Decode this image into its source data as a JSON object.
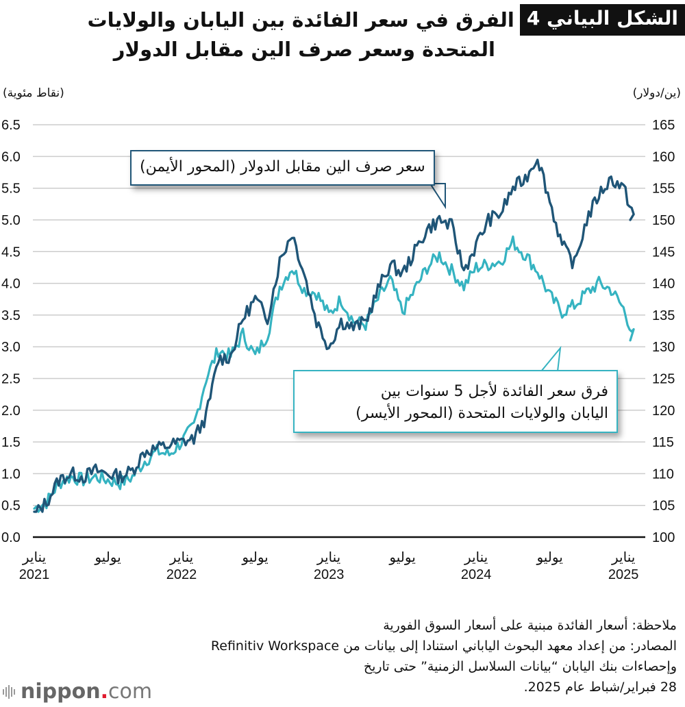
{
  "header": {
    "figure_label": "الشكل البياني 4",
    "title_line1": "الفرق في سعر الفائدة بين اليابان والولايات",
    "title_line2": "المتحدة وسعر صرف الين مقابل الدولار"
  },
  "axes": {
    "left_unit": "(نقاط مئوية)",
    "right_unit": "(ين/دولار)",
    "left_ticks": [
      "6.5",
      "6.0",
      "5.5",
      "5.0",
      "4.5",
      "4.0",
      "3.5",
      "3.0",
      "2.5",
      "2.0",
      "1.5",
      "1.0",
      "0.5",
      "0.0"
    ],
    "right_ticks": [
      "165",
      "160",
      "155",
      "150",
      "145",
      "140",
      "135",
      "130",
      "125",
      "120",
      "115",
      "110",
      "105",
      "100"
    ]
  },
  "x_labels": [
    {
      "month": "يناير",
      "year": "2021"
    },
    {
      "month": "يوليو",
      "year": ""
    },
    {
      "month": "يناير",
      "year": "2022"
    },
    {
      "month": "يوليو",
      "year": ""
    },
    {
      "month": "يناير",
      "year": "2023"
    },
    {
      "month": "يوليو",
      "year": ""
    },
    {
      "month": "يناير",
      "year": "2024"
    },
    {
      "month": "يوليو",
      "year": ""
    },
    {
      "month": "يناير",
      "year": "2025"
    }
  ],
  "callouts": {
    "yen": "سعر صرف الين مقابل الدولار (المحور الأيمن)",
    "spread_line1": "فرق سعر الفائدة لأجل 5 سنوات بين",
    "spread_line2": "اليابان والولايات المتحدة (المحور الأيسر)"
  },
  "notes": {
    "note": "ملاحظة: أسعار الفائدة مبنية على أسعار السوق الفورية",
    "source_line1": "المصادر: من إعداد معهد البحوث الياباني استنادا إلى بيانات من Refinitiv Workspace",
    "source_line2": "وإحصاءات بنك اليابان “بيانات السلاسل الزمنية” حتى تاريخ",
    "source_line3": "28 فبراير/شباط عام 2025."
  },
  "logo": {
    "brand": "nippon",
    "dot": ".",
    "tld": "com"
  },
  "colors": {
    "yen_line": "#1f5577",
    "spread_line": "#35b3c1",
    "grid": "#cccccc",
    "axis": "#111111"
  },
  "chart_data": {
    "type": "line",
    "title": "الفرق في سعر الفائدة بين اليابان والولايات المتحدة وسعر صرف الين مقابل الدولار",
    "xlabel": "",
    "ylabel_left": "(نقاط مئوية)",
    "ylabel_right": "(ين/دولار)",
    "ylim_left": [
      0,
      6.5
    ],
    "ylim_right": [
      100,
      165
    ],
    "grid": true,
    "x": [
      "2021-01",
      "2021-02",
      "2021-03",
      "2021-04",
      "2021-05",
      "2021-06",
      "2021-07",
      "2021-08",
      "2021-09",
      "2021-10",
      "2021-11",
      "2021-12",
      "2022-01",
      "2022-02",
      "2022-03",
      "2022-04",
      "2022-05",
      "2022-06",
      "2022-07",
      "2022-08",
      "2022-09",
      "2022-10",
      "2022-11",
      "2022-12",
      "2023-01",
      "2023-02",
      "2023-03",
      "2023-04",
      "2023-05",
      "2023-06",
      "2023-07",
      "2023-08",
      "2023-09",
      "2023-10",
      "2023-11",
      "2023-12",
      "2024-01",
      "2024-02",
      "2024-03",
      "2024-04",
      "2024-05",
      "2024-06",
      "2024-07",
      "2024-08",
      "2024-09",
      "2024-10",
      "2024-11",
      "2024-12",
      "2025-01",
      "2025-02"
    ],
    "series": [
      {
        "name": "فرق سعر الفائدة لأجل 5 سنوات بين اليابان والولايات المتحدة (المحور الأيسر)",
        "axis": "left",
        "values": [
          0.45,
          0.55,
          0.85,
          0.95,
          0.9,
          0.95,
          0.9,
          0.85,
          0.95,
          1.2,
          1.35,
          1.3,
          1.5,
          1.75,
          2.5,
          2.95,
          2.85,
          3.2,
          2.85,
          3.2,
          3.95,
          4.25,
          3.9,
          3.85,
          3.5,
          3.75,
          3.4,
          3.35,
          3.75,
          4.05,
          3.55,
          3.9,
          4.25,
          4.45,
          4.2,
          3.95,
          4.25,
          4.3,
          4.35,
          4.65,
          4.45,
          4.2,
          3.8,
          3.55,
          3.65,
          3.85,
          4.0,
          3.9,
          3.6,
          3.1
        ]
      },
      {
        "name": "سعر صرف الين مقابل الدولار (المحور الأيمن)",
        "axis": "right",
        "values": [
          103.5,
          105.5,
          109,
          110,
          109.5,
          110.5,
          110,
          109.5,
          110.5,
          113.5,
          114,
          114.5,
          115,
          115.5,
          119,
          128,
          128.5,
          134.5,
          137.5,
          134.5,
          143.5,
          148,
          141.5,
          134,
          130,
          134,
          133,
          134,
          139,
          143,
          141.5,
          145,
          148.5,
          150,
          149,
          142,
          146,
          150,
          151,
          155,
          156.5,
          160,
          153,
          146,
          143,
          150,
          154,
          156.5,
          155,
          150
        ]
      }
    ]
  }
}
